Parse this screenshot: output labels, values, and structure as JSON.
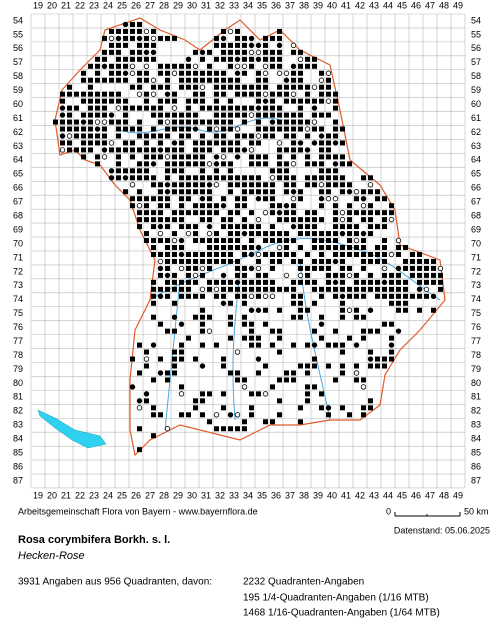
{
  "map": {
    "x_labels": [
      19,
      20,
      21,
      22,
      23,
      24,
      25,
      26,
      27,
      28,
      29,
      30,
      31,
      32,
      33,
      34,
      35,
      36,
      37,
      38,
      39,
      40,
      41,
      42,
      43,
      44,
      45,
      46,
      47,
      48,
      49
    ],
    "y_labels": [
      54,
      55,
      56,
      57,
      58,
      59,
      60,
      61,
      62,
      63,
      64,
      65,
      66,
      67,
      68,
      69,
      70,
      71,
      72,
      73,
      74,
      75,
      76,
      77,
      78,
      79,
      80,
      81,
      82,
      83,
      84,
      85,
      86,
      87
    ]
  },
  "footer": {
    "credit": "Arbeitsgemeinschaft Flora von Bayern - www.bayernflora.de",
    "scale_start": "0",
    "scale_end": "50 km",
    "date": "Datenstand: 05.06.2025",
    "title": "Rosa corymbifera Borkh. s. l.",
    "subtitle": "Hecken-Rose",
    "summary": "3931 Angaben aus 956 Quadranten, davon:",
    "stats": [
      "2232 Quadranten-Angaben",
      "195 1/4-Quadranten-Angaben (1/16 MTB)",
      "1468 1/16-Quadranten-Angaben (1/64 MTB)"
    ]
  }
}
